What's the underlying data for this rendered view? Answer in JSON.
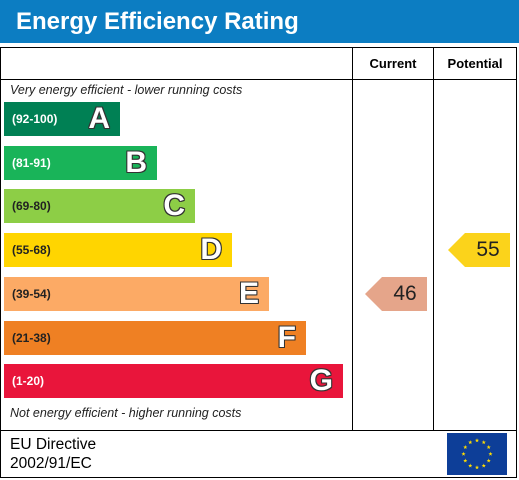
{
  "title": "Energy Efficiency Rating",
  "columns": {
    "current": "Current",
    "potential": "Potential"
  },
  "notes": {
    "top": "Very energy efficient - lower running costs",
    "bottom": "Not energy efficient - higher running costs"
  },
  "footer": {
    "directive_line1": "EU Directive",
    "directive_line2": "2002/91/EC"
  },
  "chart_data": {
    "type": "bar",
    "categories": [
      "A",
      "B",
      "C",
      "D",
      "E",
      "F",
      "G"
    ],
    "ranges": [
      "(92-100)",
      "(81-91)",
      "(69-80)",
      "(55-68)",
      "(39-54)",
      "(21-38)",
      "(1-20)"
    ],
    "colors": [
      "#008054",
      "#19b459",
      "#8dce46",
      "#ffd500",
      "#fcaa65",
      "#ef8023",
      "#e9153b"
    ],
    "current": {
      "value": 46,
      "band": "E",
      "color": "#e5a58a"
    },
    "potential": {
      "value": 55,
      "band": "D",
      "color": "#fbd31b"
    }
  }
}
